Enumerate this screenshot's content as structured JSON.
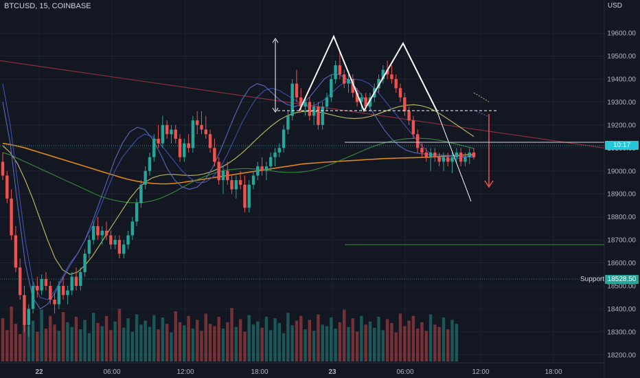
{
  "header": {
    "symbol": "BTCUSD, 15, COINBASE",
    "currency": "USD"
  },
  "price_tags": {
    "last_price": "10:17",
    "support_price": "18528.50",
    "support_label": "Support"
  },
  "colors": {
    "background": "#131722",
    "up": "#26a69a",
    "down": "#ef5350",
    "grid": "#1e222d",
    "ma_orange": "#f7931a",
    "ma_green": "#388e3c",
    "ma_yellow": "#c7c463",
    "ma_blue": "#3f51b5",
    "ma_blue2": "#5c6bc0",
    "trend_red": "#8b2e3c",
    "current_price": "#26c6da",
    "support": "#26a69a"
  },
  "chart_data": {
    "type": "candlestick",
    "yaxis": {
      "ticks": [
        18200,
        18300,
        18400,
        18500,
        18600,
        18700,
        18800,
        18900,
        19000,
        19100,
        19200,
        19300,
        19400,
        19500,
        19600
      ],
      "ylim": [
        18165,
        19690
      ]
    },
    "xaxis": {
      "ticks": [
        "22",
        "06:00",
        "12:00",
        "18:00",
        "23",
        "06:00",
        "12:00",
        "18:00"
      ]
    },
    "candles": [
      [
        19040,
        19080,
        18960,
        18980
      ],
      [
        18980,
        19000,
        18860,
        18880
      ],
      [
        18880,
        18920,
        18700,
        18720
      ],
      [
        18720,
        18760,
        18560,
        18580
      ],
      [
        18580,
        18620,
        18440,
        18460
      ],
      [
        18460,
        18500,
        18300,
        18330
      ],
      [
        18330,
        18420,
        18280,
        18400
      ],
      [
        18400,
        18520,
        18380,
        18500
      ],
      [
        18500,
        18540,
        18450,
        18480
      ],
      [
        18480,
        18550,
        18460,
        18530
      ],
      [
        18530,
        18560,
        18480,
        18500
      ],
      [
        18500,
        18520,
        18420,
        18440
      ],
      [
        18440,
        18470,
        18380,
        18420
      ],
      [
        18420,
        18520,
        18400,
        18500
      ],
      [
        18500,
        18540,
        18440,
        18460
      ],
      [
        18460,
        18500,
        18420,
        18480
      ],
      [
        18480,
        18560,
        18460,
        18540
      ],
      [
        18540,
        18580,
        18480,
        18500
      ],
      [
        18500,
        18580,
        18480,
        18560
      ],
      [
        18560,
        18660,
        18540,
        18640
      ],
      [
        18640,
        18720,
        18620,
        18700
      ],
      [
        18700,
        18780,
        18680,
        18760
      ],
      [
        18760,
        18800,
        18700,
        18720
      ],
      [
        18720,
        18760,
        18680,
        18740
      ],
      [
        18740,
        18780,
        18700,
        18720
      ],
      [
        18720,
        18740,
        18660,
        18680
      ],
      [
        18680,
        18720,
        18660,
        18700
      ],
      [
        18700,
        18720,
        18620,
        18640
      ],
      [
        18640,
        18700,
        18620,
        18680
      ],
      [
        18680,
        18740,
        18660,
        18720
      ],
      [
        18720,
        18800,
        18700,
        18780
      ],
      [
        18780,
        18880,
        18760,
        18860
      ],
      [
        18860,
        18960,
        18840,
        18940
      ],
      [
        18940,
        19020,
        18920,
        19000
      ],
      [
        19000,
        19080,
        18980,
        19060
      ],
      [
        19060,
        19160,
        19040,
        19140
      ],
      [
        19140,
        19200,
        19100,
        19120
      ],
      [
        19120,
        19240,
        19100,
        19200
      ],
      [
        19200,
        19220,
        19140,
        19160
      ],
      [
        19160,
        19200,
        19120,
        19180
      ],
      [
        19180,
        19200,
        19120,
        19140
      ],
      [
        19140,
        19160,
        19040,
        19060
      ],
      [
        19060,
        19140,
        19040,
        19120
      ],
      [
        19120,
        19160,
        19080,
        19100
      ],
      [
        19100,
        19240,
        19080,
        19220
      ],
      [
        19220,
        19260,
        19160,
        19200
      ],
      [
        19200,
        19260,
        19160,
        19180
      ],
      [
        19180,
        19240,
        19140,
        19160
      ],
      [
        19160,
        19180,
        19080,
        19100
      ],
      [
        19100,
        19140,
        19020,
        19040
      ],
      [
        19040,
        19060,
        18940,
        18960
      ],
      [
        18960,
        19020,
        18900,
        19000
      ],
      [
        19000,
        19040,
        18940,
        18960
      ],
      [
        18960,
        18980,
        18900,
        18920
      ],
      [
        18920,
        18980,
        18880,
        18960
      ],
      [
        18960,
        19000,
        18920,
        18940
      ],
      [
        18940,
        18980,
        18820,
        18840
      ],
      [
        18840,
        18960,
        18820,
        18940
      ],
      [
        18940,
        19000,
        18920,
        18980
      ],
      [
        18980,
        19040,
        18960,
        19020
      ],
      [
        19020,
        19060,
        18980,
        19000
      ],
      [
        19000,
        19040,
        18960,
        19020
      ],
      [
        19020,
        19080,
        19000,
        19060
      ],
      [
        19060,
        19100,
        19020,
        19080
      ],
      [
        19080,
        19120,
        19060,
        19100
      ],
      [
        19100,
        19200,
        19080,
        19180
      ],
      [
        19180,
        19260,
        19160,
        19240
      ],
      [
        19240,
        19400,
        19220,
        19380
      ],
      [
        19380,
        19440,
        19300,
        19320
      ],
      [
        19320,
        19360,
        19260,
        19280
      ],
      [
        19280,
        19320,
        19240,
        19300
      ],
      [
        19300,
        19320,
        19220,
        19240
      ],
      [
        19240,
        19300,
        19200,
        19280
      ],
      [
        19280,
        19300,
        19180,
        19200
      ],
      [
        19200,
        19300,
        19180,
        19280
      ],
      [
        19280,
        19340,
        19260,
        19320
      ],
      [
        19320,
        19420,
        19300,
        19400
      ],
      [
        19400,
        19480,
        19380,
        19460
      ],
      [
        19460,
        19520,
        19400,
        19420
      ],
      [
        19420,
        19440,
        19360,
        19380
      ],
      [
        19380,
        19420,
        19340,
        19400
      ],
      [
        19400,
        19420,
        19320,
        19340
      ],
      [
        19340,
        19360,
        19280,
        19300
      ],
      [
        19300,
        19340,
        19260,
        19320
      ],
      [
        19320,
        19340,
        19260,
        19280
      ],
      [
        19280,
        19340,
        19260,
        19320
      ],
      [
        19320,
        19380,
        19300,
        19360
      ],
      [
        19360,
        19420,
        19340,
        19400
      ],
      [
        19400,
        19460,
        19380,
        19440
      ],
      [
        19440,
        19480,
        19400,
        19420
      ],
      [
        19420,
        19460,
        19380,
        19400
      ],
      [
        19400,
        19420,
        19340,
        19360
      ],
      [
        19360,
        19380,
        19300,
        19320
      ],
      [
        19320,
        19340,
        19240,
        19260
      ],
      [
        19260,
        19280,
        19200,
        19220
      ],
      [
        19220,
        19240,
        19140,
        19160
      ],
      [
        19160,
        19180,
        19080,
        19100
      ],
      [
        19100,
        19120,
        19060,
        19080
      ],
      [
        19080,
        19100,
        19040,
        19060
      ],
      [
        19060,
        19100,
        19000,
        19080
      ],
      [
        19080,
        19100,
        19040,
        19060
      ],
      [
        19060,
        19080,
        19020,
        19040
      ],
      [
        19040,
        19080,
        19000,
        19060
      ],
      [
        19060,
        19080,
        19020,
        19040
      ],
      [
        19040,
        19080,
        18990,
        19060
      ],
      [
        19060,
        19100,
        19040,
        19080
      ],
      [
        19080,
        19100,
        19020,
        19040
      ],
      [
        19040,
        19080,
        19020,
        19060
      ],
      [
        19060,
        19100,
        19030,
        19080
      ],
      [
        19080,
        19100,
        19050,
        19060
      ]
    ],
    "moving_averages": [
      {
        "color": "#f7931a",
        "values": [
          19120,
          19115,
          19108,
          19100,
          19090,
          19080,
          19070,
          19060,
          19050,
          19040,
          19030,
          19020,
          19010,
          19000,
          18990,
          18980,
          18970,
          18962,
          18955,
          18950,
          18946,
          18944,
          18944,
          18946,
          18950,
          18955,
          18960,
          18965,
          18970,
          18975,
          18980,
          18985,
          18990,
          18995,
          19000,
          19005,
          19010,
          19015,
          19020,
          19025,
          19030,
          19033,
          19035,
          19038,
          19040,
          19042,
          19044,
          19046,
          19048,
          19050,
          19052,
          19054,
          19055,
          19056,
          19057,
          19058,
          19059,
          19060,
          19062,
          19064,
          19066,
          19068,
          19070,
          19072
        ]
      },
      {
        "color": "#388e3c",
        "values": [
          19080,
          19070,
          19055,
          19040,
          19025,
          19010,
          18995,
          18980,
          18965,
          18950,
          18935,
          18920,
          18905,
          18890,
          18880,
          18872,
          18866,
          18862,
          18862,
          18864,
          18870,
          18880,
          18894,
          18910,
          18928,
          18946,
          18962,
          18976,
          18988,
          18998,
          19004,
          19008,
          19010,
          19010,
          19008,
          19004,
          19000,
          18996,
          18994,
          18994,
          18996,
          19000,
          19008,
          19018,
          19030,
          19044,
          19058,
          19072,
          19086,
          19100,
          19112,
          19122,
          19130,
          19136,
          19140,
          19142,
          19142,
          19140,
          19136,
          19130,
          19122,
          19114,
          19106,
          19098
        ]
      },
      {
        "color": "#c7c463",
        "values": [
          19110,
          19080,
          19030,
          18960,
          18880,
          18790,
          18700,
          18620,
          18570,
          18550,
          18560,
          18590,
          18630,
          18680,
          18730,
          18780,
          18830,
          18880,
          18920,
          18950,
          18970,
          18980,
          18985,
          18985,
          18982,
          18980,
          18982,
          18988,
          18998,
          19012,
          19030,
          19052,
          19078,
          19108,
          19140,
          19170,
          19198,
          19222,
          19240,
          19252,
          19258,
          19260,
          19258,
          19252,
          19244,
          19236,
          19230,
          19228,
          19230,
          19236,
          19246,
          19258,
          19270,
          19280,
          19286,
          19288,
          19284,
          19274,
          19258,
          19238,
          19216,
          19194,
          19172,
          19150
        ]
      },
      {
        "color": "#3f51b5",
        "values": [
          19380,
          19200,
          18950,
          18700,
          18520,
          18450,
          18440,
          18480,
          18540,
          18600,
          18640,
          18700,
          18760,
          18840,
          18920,
          19000,
          19060,
          19100,
          19140,
          19160,
          19150,
          19120,
          19080,
          19040,
          19000,
          18970,
          18950,
          18950,
          18970,
          19010,
          19070,
          19140,
          19210,
          19270,
          19320,
          19350,
          19360,
          19350,
          19330,
          19310,
          19290,
          19280,
          19290,
          19310,
          19340,
          19370,
          19390,
          19400,
          19395,
          19380,
          19350,
          19310,
          19270,
          19230,
          19190,
          19150,
          19110,
          19080,
          19060,
          19050,
          19050,
          19055,
          19062,
          19068
        ]
      },
      {
        "color": "#5c6bc0",
        "values": [
          19300,
          19120,
          18850,
          18600,
          18450,
          18400,
          18420,
          18470,
          18530,
          18590,
          18640,
          18700,
          18780,
          18870,
          18960,
          19050,
          19120,
          19170,
          19190,
          19180,
          19140,
          19080,
          19010,
          18960,
          18930,
          18920,
          18930,
          18960,
          19010,
          19080,
          19160,
          19240,
          19310,
          19360,
          19380,
          19370,
          19340,
          19310,
          19290,
          19280,
          19290,
          19320,
          19360,
          19400,
          19420,
          19420,
          19400,
          19370,
          19330,
          19280,
          19230,
          19180,
          19140,
          19110,
          19090,
          19080,
          19075,
          19072,
          19070,
          19068,
          19066,
          19064,
          19062,
          19060
        ]
      }
    ],
    "volumes": [
      55,
      40,
      70,
      48,
      35,
      60,
      45,
      52,
      38,
      66,
      42,
      58,
      47,
      39,
      63,
      50,
      44,
      57,
      41,
      53,
      36,
      62,
      49,
      45,
      58,
      40,
      51,
      67,
      43,
      55,
      38,
      60,
      47,
      52,
      44,
      59,
      41,
      56,
      48,
      37,
      64,
      50,
      46,
      58,
      42,
      53,
      39,
      61,
      48,
      45,
      57,
      42,
      50,
      68,
      44,
      54,
      38,
      59,
      47,
      51,
      43,
      57,
      40,
      55,
      49,
      36,
      62,
      46,
      52,
      58,
      41,
      53,
      39,
      60,
      47,
      45,
      56,
      42,
      50,
      66,
      44,
      55,
      38,
      58,
      47,
      51,
      43,
      57,
      40,
      54,
      49,
      37,
      61,
      45,
      52,
      58,
      42,
      50,
      39,
      60,
      47,
      44,
      56,
      41,
      53,
      48
    ]
  }
}
